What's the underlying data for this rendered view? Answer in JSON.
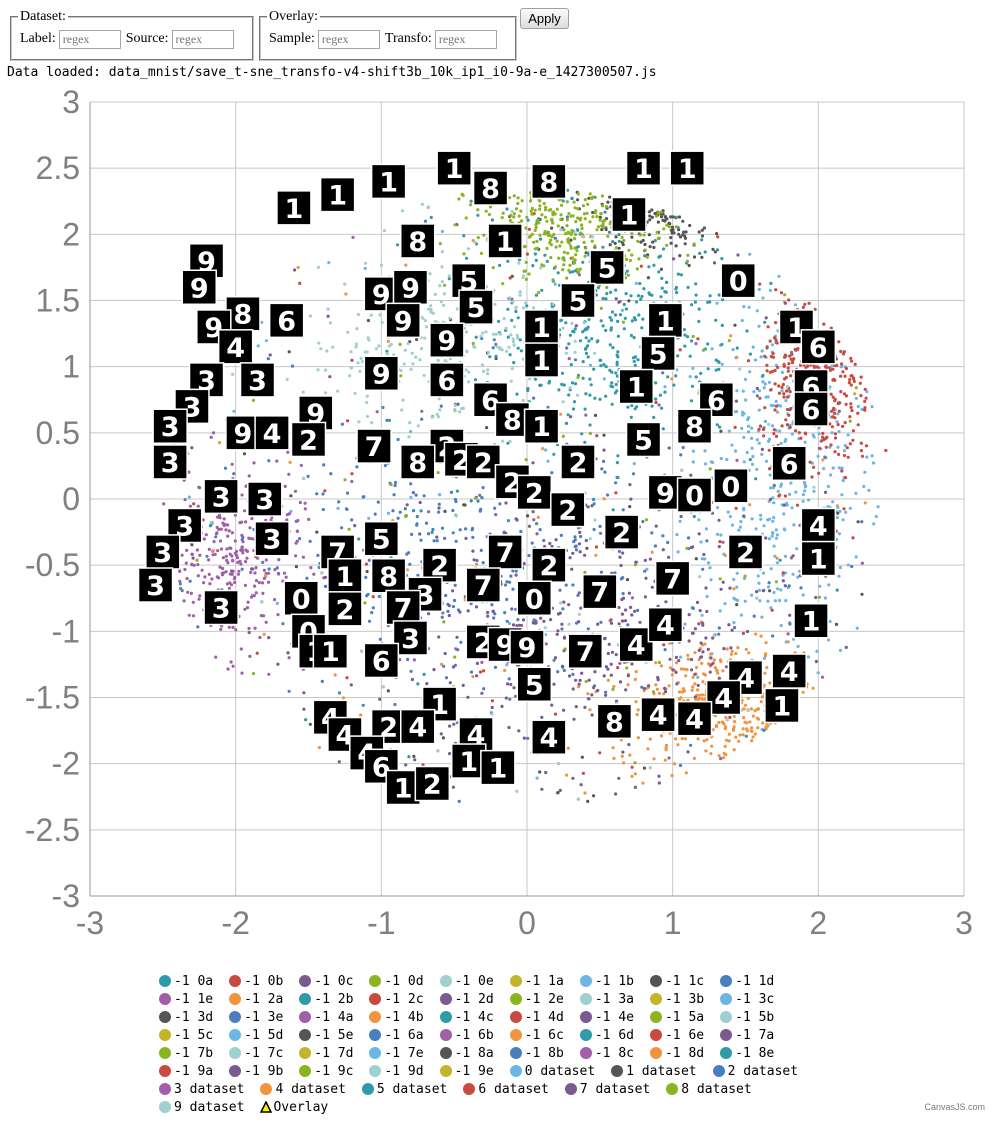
{
  "controls": {
    "dataset": {
      "legend": "Dataset:",
      "label_label": "Label:",
      "label_placeholder": "regex",
      "source_label": "Source:",
      "source_placeholder": "regex"
    },
    "overlay": {
      "legend": "Overlay:",
      "sample_label": "Sample:",
      "sample_placeholder": "regex",
      "transfo_label": "Transfo:",
      "transfo_placeholder": "regex"
    },
    "apply_label": "Apply"
  },
  "status": {
    "data_loaded": "Data loaded: data_mnist/save_t-sne_transfo-v4-shift3b_10k_ip1_i0-9a-e_1427300507.js"
  },
  "credit": "CanvasJS.com",
  "chart_data": {
    "type": "scatter",
    "xlim": [
      -3,
      3
    ],
    "ylim": [
      -3,
      3
    ],
    "x_ticks": [
      "-3",
      "-2",
      "-1",
      "0",
      "1",
      "2",
      "3"
    ],
    "y_ticks": [
      "3",
      "2.5",
      "2",
      "1.5",
      "1",
      "0.5",
      "0",
      "-0.5",
      "-1",
      "-1.5",
      "-2",
      "-2.5",
      "-3"
    ],
    "grid": true,
    "legend_position": "bottom",
    "clusters": [
      {
        "name": "0 dataset",
        "color": "#6cb6e6",
        "cx": 1.75,
        "cy": 0.1,
        "sx": 0.35,
        "sy": 0.7,
        "n": 420
      },
      {
        "name": "1 dataset",
        "color": "#555555",
        "cx": 0.9,
        "cy": 2.1,
        "sx": 0.35,
        "sy": 0.15,
        "n": 140
      },
      {
        "name": "2 dataset",
        "color": "#4a7ebf",
        "cx": -0.4,
        "cy": -0.5,
        "sx": 0.8,
        "sy": 0.5,
        "n": 420
      },
      {
        "name": "3 dataset",
        "color": "#a05fa8",
        "cx": -2.05,
        "cy": -0.45,
        "sx": 0.25,
        "sy": 0.35,
        "n": 320
      },
      {
        "name": "4 dataset",
        "color": "#f09440",
        "cx": 1.4,
        "cy": -1.55,
        "sx": 0.4,
        "sy": 0.25,
        "n": 380
      },
      {
        "name": "5 dataset",
        "color": "#2f9aa8",
        "cx": 0.55,
        "cy": 1.3,
        "sx": 0.45,
        "sy": 0.45,
        "n": 420
      },
      {
        "name": "6 dataset",
        "color": "#c84a40",
        "cx": 2.0,
        "cy": 0.85,
        "sx": 0.2,
        "sy": 0.35,
        "n": 320
      },
      {
        "name": "7 dataset",
        "color": "#7a5a90",
        "cx": 0.4,
        "cy": -1.0,
        "sx": 0.7,
        "sy": 0.5,
        "n": 420
      },
      {
        "name": "8 dataset",
        "color": "#8ab520",
        "cx": 0.3,
        "cy": 2.05,
        "sx": 0.35,
        "sy": 0.18,
        "n": 300
      },
      {
        "name": "9 dataset",
        "color": "#9fcfcf",
        "cx": -0.6,
        "cy": 1.2,
        "sx": 0.45,
        "sy": 0.35,
        "n": 300
      }
    ],
    "overlay_samples": [
      {
        "digit": "1",
        "x": -1.6,
        "y": 2.2
      },
      {
        "digit": "1",
        "x": -1.3,
        "y": 2.3
      },
      {
        "digit": "1",
        "x": -0.95,
        "y": 2.4
      },
      {
        "digit": "1",
        "x": -0.5,
        "y": 2.5
      },
      {
        "digit": "8",
        "x": -0.25,
        "y": 2.35
      },
      {
        "digit": "8",
        "x": 0.15,
        "y": 2.4
      },
      {
        "digit": "1",
        "x": 0.8,
        "y": 2.5
      },
      {
        "digit": "1",
        "x": 1.1,
        "y": 2.5
      },
      {
        "digit": "1",
        "x": 0.7,
        "y": 2.15
      },
      {
        "digit": "8",
        "x": -0.75,
        "y": 1.95
      },
      {
        "digit": "1",
        "x": -0.15,
        "y": 1.95
      },
      {
        "digit": "5",
        "x": 0.55,
        "y": 1.75
      },
      {
        "digit": "0",
        "x": 1.45,
        "y": 1.65
      },
      {
        "digit": "9",
        "x": -2.2,
        "y": 1.8
      },
      {
        "digit": "9",
        "x": -2.25,
        "y": 1.6
      },
      {
        "digit": "9",
        "x": -1.0,
        "y": 1.55
      },
      {
        "digit": "9",
        "x": -0.8,
        "y": 1.6
      },
      {
        "digit": "5",
        "x": -0.4,
        "y": 1.65
      },
      {
        "digit": "5",
        "x": -0.35,
        "y": 1.45
      },
      {
        "digit": "5",
        "x": 0.35,
        "y": 1.5
      },
      {
        "digit": "8",
        "x": -1.95,
        "y": 1.4
      },
      {
        "digit": "6",
        "x": -1.65,
        "y": 1.35
      },
      {
        "digit": "9",
        "x": -0.85,
        "y": 1.35
      },
      {
        "digit": "9",
        "x": -0.55,
        "y": 1.2
      },
      {
        "digit": "1",
        "x": 0.1,
        "y": 1.3
      },
      {
        "digit": "1",
        "x": 0.95,
        "y": 1.35
      },
      {
        "digit": "1",
        "x": 1.85,
        "y": 1.3
      },
      {
        "digit": "6",
        "x": 2.0,
        "y": 1.15
      },
      {
        "digit": "9",
        "x": -2.15,
        "y": 1.3
      },
      {
        "digit": "4",
        "x": -2.0,
        "y": 1.15
      },
      {
        "digit": "5",
        "x": 0.9,
        "y": 1.1
      },
      {
        "digit": "1",
        "x": 0.1,
        "y": 1.05
      },
      {
        "digit": "9",
        "x": -1.0,
        "y": 0.95
      },
      {
        "digit": "6",
        "x": -0.55,
        "y": 0.9
      },
      {
        "digit": "3",
        "x": -2.2,
        "y": 0.9
      },
      {
        "digit": "3",
        "x": -1.85,
        "y": 0.9
      },
      {
        "digit": "1",
        "x": 0.75,
        "y": 0.85
      },
      {
        "digit": "6",
        "x": 1.95,
        "y": 0.85
      },
      {
        "digit": "3",
        "x": -2.3,
        "y": 0.7
      },
      {
        "digit": "9",
        "x": -1.45,
        "y": 0.65
      },
      {
        "digit": "6",
        "x": -0.25,
        "y": 0.75
      },
      {
        "digit": "6",
        "x": 1.3,
        "y": 0.75
      },
      {
        "digit": "6",
        "x": 1.95,
        "y": 0.68
      },
      {
        "digit": "3",
        "x": -2.45,
        "y": 0.55
      },
      {
        "digit": "9",
        "x": -1.95,
        "y": 0.5
      },
      {
        "digit": "4",
        "x": -1.75,
        "y": 0.5
      },
      {
        "digit": "8",
        "x": -0.1,
        "y": 0.6
      },
      {
        "digit": "1",
        "x": 0.1,
        "y": 0.55
      },
      {
        "digit": "8",
        "x": 1.15,
        "y": 0.55
      },
      {
        "digit": "2",
        "x": -1.5,
        "y": 0.45
      },
      {
        "digit": "7",
        "x": -1.05,
        "y": 0.4
      },
      {
        "digit": "2",
        "x": -0.55,
        "y": 0.4
      },
      {
        "digit": "5",
        "x": 0.8,
        "y": 0.45
      },
      {
        "digit": "3",
        "x": -2.45,
        "y": 0.28
      },
      {
        "digit": "8",
        "x": -0.75,
        "y": 0.28
      },
      {
        "digit": "2",
        "x": -0.45,
        "y": 0.3
      },
      {
        "digit": "2",
        "x": -0.3,
        "y": 0.28
      },
      {
        "digit": "2",
        "x": 0.35,
        "y": 0.28
      },
      {
        "digit": "6",
        "x": 1.8,
        "y": 0.27
      },
      {
        "digit": "2",
        "x": -0.1,
        "y": 0.13
      },
      {
        "digit": "0",
        "x": 1.4,
        "y": 0.1
      },
      {
        "digit": "3",
        "x": -2.1,
        "y": 0.02
      },
      {
        "digit": "3",
        "x": -1.8,
        "y": 0.0
      },
      {
        "digit": "2",
        "x": 0.05,
        "y": 0.05
      },
      {
        "digit": "9",
        "x": 0.95,
        "y": 0.05
      },
      {
        "digit": "0",
        "x": 1.15,
        "y": 0.03
      },
      {
        "digit": "2",
        "x": 0.28,
        "y": -0.08
      },
      {
        "digit": "3",
        "x": -2.35,
        "y": -0.2
      },
      {
        "digit": "4",
        "x": 2.0,
        "y": -0.2
      },
      {
        "digit": "3",
        "x": -1.75,
        "y": -0.3
      },
      {
        "digit": "5",
        "x": -1.0,
        "y": -0.3
      },
      {
        "digit": "2",
        "x": 0.65,
        "y": -0.25
      },
      {
        "digit": "3",
        "x": -2.5,
        "y": -0.4
      },
      {
        "digit": "7",
        "x": -1.3,
        "y": -0.4
      },
      {
        "digit": "7",
        "x": -0.15,
        "y": -0.4
      },
      {
        "digit": "2",
        "x": 1.5,
        "y": -0.4
      },
      {
        "digit": "1",
        "x": 2.0,
        "y": -0.45
      },
      {
        "digit": "2",
        "x": -0.6,
        "y": -0.5
      },
      {
        "digit": "2",
        "x": 0.15,
        "y": -0.5
      },
      {
        "digit": "1",
        "x": -1.25,
        "y": -0.58
      },
      {
        "digit": "8",
        "x": -0.95,
        "y": -0.58
      },
      {
        "digit": "7",
        "x": -0.3,
        "y": -0.65
      },
      {
        "digit": "7",
        "x": 0.5,
        "y": -0.7
      },
      {
        "digit": "7",
        "x": 1.0,
        "y": -0.6
      },
      {
        "digit": "3",
        "x": -2.55,
        "y": -0.65
      },
      {
        "digit": "3",
        "x": -0.7,
        "y": -0.72
      },
      {
        "digit": "0",
        "x": -1.55,
        "y": -0.75
      },
      {
        "digit": "2",
        "x": -1.25,
        "y": -0.83
      },
      {
        "digit": "7",
        "x": -0.85,
        "y": -0.82
      },
      {
        "digit": "0",
        "x": 0.05,
        "y": -0.75
      },
      {
        "digit": "3",
        "x": -2.1,
        "y": -0.82
      },
      {
        "digit": "0",
        "x": -1.5,
        "y": -1.0
      },
      {
        "digit": "3",
        "x": -0.8,
        "y": -1.05
      },
      {
        "digit": "2",
        "x": -0.3,
        "y": -1.08
      },
      {
        "digit": "9",
        "x": -0.15,
        "y": -1.1
      },
      {
        "digit": "9",
        "x": 0.0,
        "y": -1.12
      },
      {
        "digit": "7",
        "x": 0.4,
        "y": -1.15
      },
      {
        "digit": "4",
        "x": 0.75,
        "y": -1.1
      },
      {
        "digit": "4",
        "x": 0.95,
        "y": -0.95
      },
      {
        "digit": "1",
        "x": 1.95,
        "y": -0.92
      },
      {
        "digit": "1",
        "x": -1.45,
        "y": -1.15
      },
      {
        "digit": "1",
        "x": -1.35,
        "y": -1.15
      },
      {
        "digit": "6",
        "x": -1.0,
        "y": -1.22
      },
      {
        "digit": "5",
        "x": 0.05,
        "y": -1.4
      },
      {
        "digit": "4",
        "x": 1.5,
        "y": -1.35
      },
      {
        "digit": "4",
        "x": 1.35,
        "y": -1.5
      },
      {
        "digit": "4",
        "x": 1.8,
        "y": -1.3
      },
      {
        "digit": "1",
        "x": 1.75,
        "y": -1.56
      },
      {
        "digit": "1",
        "x": -0.6,
        "y": -1.55
      },
      {
        "digit": "4",
        "x": 0.9,
        "y": -1.63
      },
      {
        "digit": "4",
        "x": 1.15,
        "y": -1.66
      },
      {
        "digit": "8",
        "x": 0.6,
        "y": -1.68
      },
      {
        "digit": "4",
        "x": -1.35,
        "y": -1.65
      },
      {
        "digit": "4",
        "x": -1.25,
        "y": -1.78
      },
      {
        "digit": "2",
        "x": -0.95,
        "y": -1.72
      },
      {
        "digit": "4",
        "x": -0.75,
        "y": -1.72
      },
      {
        "digit": "4",
        "x": -0.35,
        "y": -1.78
      },
      {
        "digit": "4",
        "x": 0.15,
        "y": -1.8
      },
      {
        "digit": "4",
        "x": -1.1,
        "y": -1.92
      },
      {
        "digit": "6",
        "x": -1.0,
        "y": -2.02
      },
      {
        "digit": "1",
        "x": -0.4,
        "y": -1.98
      },
      {
        "digit": "1",
        "x": -0.2,
        "y": -2.03
      },
      {
        "digit": "1",
        "x": -0.85,
        "y": -2.18
      },
      {
        "digit": "2",
        "x": -0.65,
        "y": -2.15
      }
    ],
    "series_legend": [
      {
        "name": "-1 0a",
        "color": "#2f9aa8"
      },
      {
        "name": "-1 0b",
        "color": "#c84a40"
      },
      {
        "name": "-1 0c",
        "color": "#7a5a90"
      },
      {
        "name": "-1 0d",
        "color": "#8ab520"
      },
      {
        "name": "-1 0e",
        "color": "#9fcfcf"
      },
      {
        "name": "-1 1a",
        "color": "#c3b52a"
      },
      {
        "name": "-1 1b",
        "color": "#6cb6e6"
      },
      {
        "name": "-1 1c",
        "color": "#555555"
      },
      {
        "name": "-1 1d",
        "color": "#4a7ebf"
      },
      {
        "name": "-1 1e",
        "color": "#a05fa8"
      },
      {
        "name": "-1 2a",
        "color": "#f09440"
      },
      {
        "name": "-1 2b",
        "color": "#2f9aa8"
      },
      {
        "name": "-1 2c",
        "color": "#c84a40"
      },
      {
        "name": "-1 2d",
        "color": "#7a5a90"
      },
      {
        "name": "-1 2e",
        "color": "#8ab520"
      },
      {
        "name": "-1 3a",
        "color": "#9fcfcf"
      },
      {
        "name": "-1 3b",
        "color": "#c3b52a"
      },
      {
        "name": "-1 3c",
        "color": "#6cb6e6"
      },
      {
        "name": "-1 3d",
        "color": "#555555"
      },
      {
        "name": "-1 3e",
        "color": "#4a7ebf"
      },
      {
        "name": "-1 4a",
        "color": "#a05fa8"
      },
      {
        "name": "-1 4b",
        "color": "#f09440"
      },
      {
        "name": "-1 4c",
        "color": "#2f9aa8"
      },
      {
        "name": "-1 4d",
        "color": "#c84a40"
      },
      {
        "name": "-1 4e",
        "color": "#7a5a90"
      },
      {
        "name": "-1 5a",
        "color": "#8ab520"
      },
      {
        "name": "-1 5b",
        "color": "#9fcfcf"
      },
      {
        "name": "-1 5c",
        "color": "#c3b52a"
      },
      {
        "name": "-1 5d",
        "color": "#6cb6e6"
      },
      {
        "name": "-1 5e",
        "color": "#555555"
      },
      {
        "name": "-1 6a",
        "color": "#4a7ebf"
      },
      {
        "name": "-1 6b",
        "color": "#a05fa8"
      },
      {
        "name": "-1 6c",
        "color": "#f09440"
      },
      {
        "name": "-1 6d",
        "color": "#2f9aa8"
      },
      {
        "name": "-1 6e",
        "color": "#c84a40"
      },
      {
        "name": "-1 7a",
        "color": "#7a5a90"
      },
      {
        "name": "-1 7b",
        "color": "#8ab520"
      },
      {
        "name": "-1 7c",
        "color": "#9fcfcf"
      },
      {
        "name": "-1 7d",
        "color": "#c3b52a"
      },
      {
        "name": "-1 7e",
        "color": "#6cb6e6"
      },
      {
        "name": "-1 8a",
        "color": "#555555"
      },
      {
        "name": "-1 8b",
        "color": "#4a7ebf"
      },
      {
        "name": "-1 8c",
        "color": "#a05fa8"
      },
      {
        "name": "-1 8d",
        "color": "#f09440"
      },
      {
        "name": "-1 8e",
        "color": "#2f9aa8"
      },
      {
        "name": "-1 9a",
        "color": "#c84a40"
      },
      {
        "name": "-1 9b",
        "color": "#7a5a90"
      },
      {
        "name": "-1 9c",
        "color": "#8ab520"
      },
      {
        "name": "-1 9d",
        "color": "#9fcfcf"
      },
      {
        "name": "-1 9e",
        "color": "#c3b52a"
      },
      {
        "name": "0 dataset",
        "color": "#6cb6e6"
      },
      {
        "name": "1 dataset",
        "color": "#555555"
      },
      {
        "name": "2 dataset",
        "color": "#4a7ebf"
      },
      {
        "name": "3 dataset",
        "color": "#a05fa8"
      },
      {
        "name": "4 dataset",
        "color": "#f09440"
      },
      {
        "name": "5 dataset",
        "color": "#2f9aa8"
      },
      {
        "name": "6 dataset",
        "color": "#c84a40"
      },
      {
        "name": "7 dataset",
        "color": "#7a5a90"
      },
      {
        "name": "8 dataset",
        "color": "#8ab520"
      },
      {
        "name": "9 dataset",
        "color": "#9fcfcf"
      },
      {
        "name": "Overlay",
        "color": "#ffee00",
        "marker": "triangle"
      }
    ]
  }
}
